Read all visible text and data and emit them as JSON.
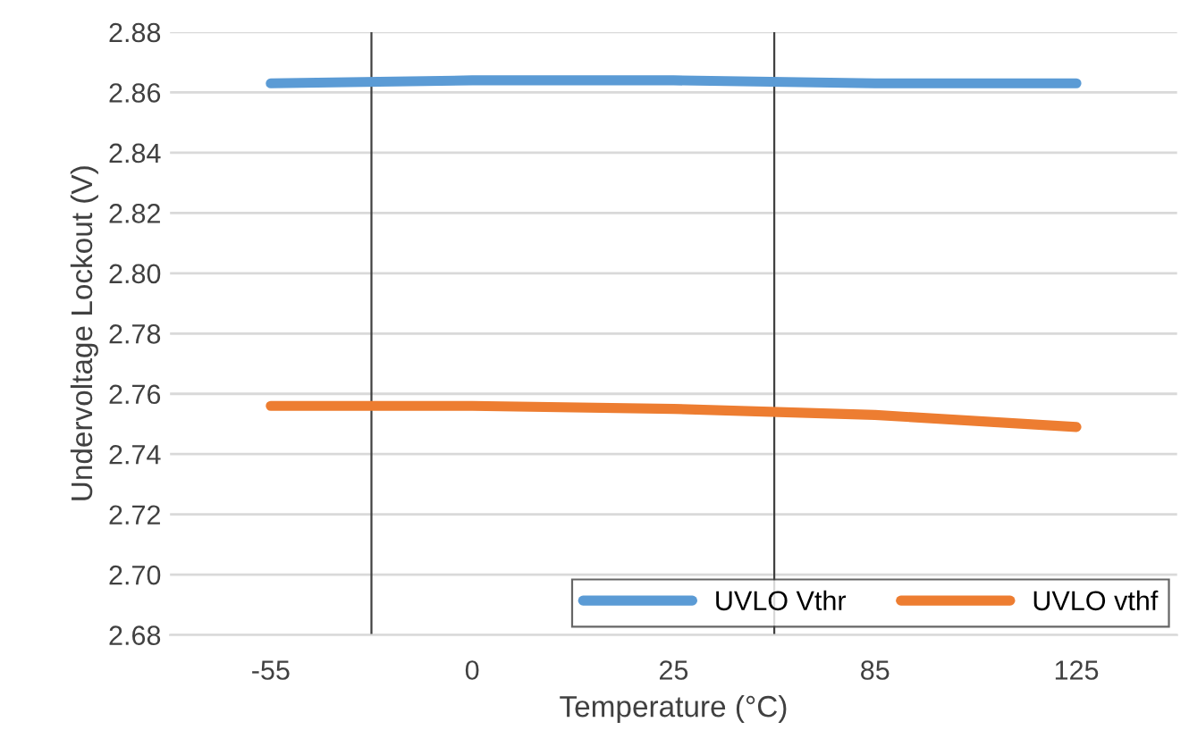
{
  "chart_data": {
    "type": "line",
    "xlabel": "Temperature (°C)",
    "ylabel": "Undervoltage Lockout (V)",
    "categories": [
      "-55",
      "0",
      "25",
      "85",
      "125"
    ],
    "series": [
      {
        "name": "UVLO Vthr",
        "color": "#5b9bd5",
        "values": [
          2.863,
          2.864,
          2.864,
          2.863,
          2.863
        ]
      },
      {
        "name": "UVLO vthf",
        "color": "#ed7d31",
        "values": [
          2.756,
          2.756,
          2.755,
          2.753,
          2.749
        ]
      }
    ],
    "ylim": [
      2.68,
      2.88
    ],
    "yticks": [
      {
        "value": 2.68,
        "label": "2.68"
      },
      {
        "value": 2.7,
        "label": "2.70"
      },
      {
        "value": 2.72,
        "label": "2.72"
      },
      {
        "value": 2.74,
        "label": "2.74"
      },
      {
        "value": 2.76,
        "label": "2.76"
      },
      {
        "value": 2.78,
        "label": "2.78"
      },
      {
        "value": 2.8,
        "label": "2.80"
      },
      {
        "value": 2.82,
        "label": "2.82"
      },
      {
        "value": 2.84,
        "label": "2.84"
      },
      {
        "value": 2.86,
        "label": "2.86"
      },
      {
        "value": 2.88,
        "label": "2.88"
      }
    ],
    "grid": true,
    "legend": "bottom right",
    "marker": "none",
    "line_style": "solid"
  }
}
